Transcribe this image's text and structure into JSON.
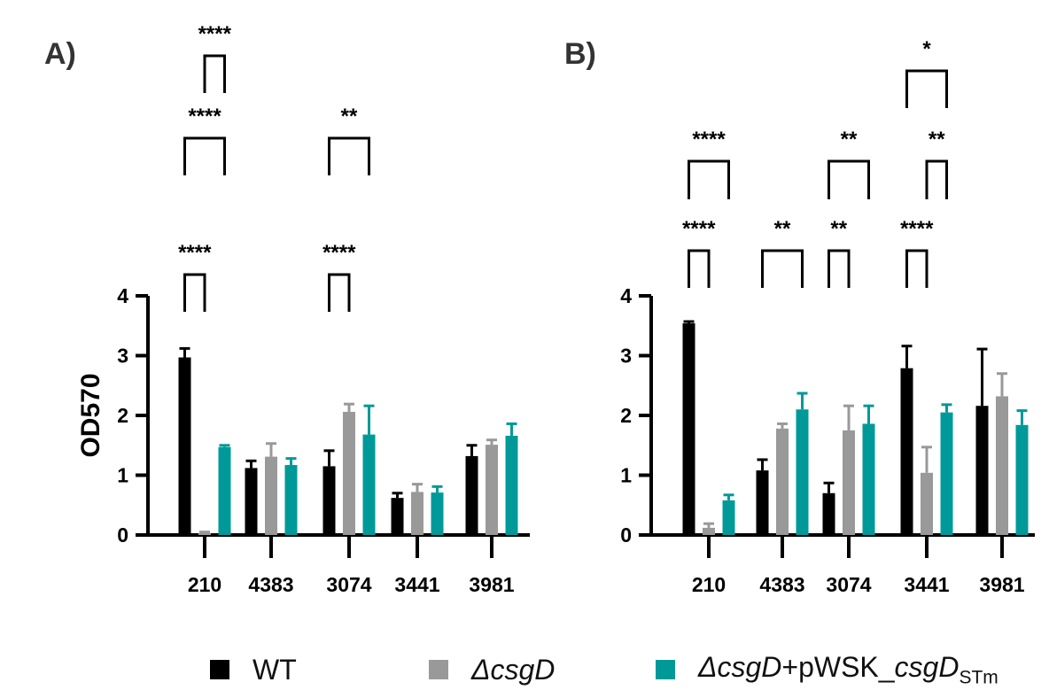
{
  "colors": {
    "wt": "#000000",
    "csgD": "#999999",
    "complement": "#009999",
    "axis": "#000000"
  },
  "legend": {
    "wt": {
      "label": "WT"
    },
    "csgD": {
      "label": "ΔcsgD"
    },
    "complement": {
      "prefix": "ΔcsgD",
      "mid": "+pWSK_",
      "gene": "csgD",
      "sub": "STm"
    }
  },
  "chart_data": [
    {
      "panel": "A)",
      "type": "bar",
      "ylabel": "OD570",
      "ylim": [
        0,
        4
      ],
      "yticks": [
        0,
        1,
        2,
        3,
        4
      ],
      "categories": [
        "210",
        "4383",
        "3074",
        "3441",
        "3981"
      ],
      "series": [
        {
          "name": "WT",
          "values": [
            2.97,
            1.12,
            1.15,
            0.62,
            1.32
          ],
          "errors": [
            0.15,
            0.12,
            0.26,
            0.08,
            0.18
          ]
        },
        {
          "name": "ΔcsgD",
          "values": [
            0.03,
            1.31,
            2.06,
            0.72,
            1.51
          ],
          "errors": [
            0.02,
            0.22,
            0.13,
            0.13,
            0.08
          ]
        },
        {
          "name": "ΔcsgD+pWSK_csgD STm",
          "values": [
            1.47,
            1.17,
            1.68,
            0.71,
            1.66
          ],
          "errors": [
            0.03,
            0.11,
            0.48,
            0.1,
            0.2
          ]
        }
      ],
      "significance": [
        {
          "category": "210",
          "from": 0,
          "to": 1,
          "level": 0,
          "label": "****"
        },
        {
          "category": "210",
          "from": 0,
          "to": 2,
          "level": 1,
          "label": "****"
        },
        {
          "category": "210",
          "from": 1,
          "to": 2,
          "level": 2,
          "label": "****"
        },
        {
          "category": "3074",
          "from": 0,
          "to": 1,
          "level": 0,
          "label": "****"
        },
        {
          "category": "3074",
          "from": 0,
          "to": 2,
          "level": 1,
          "label": "**"
        }
      ]
    },
    {
      "panel": "B)",
      "type": "bar",
      "ylabel": "",
      "ylim": [
        0,
        4
      ],
      "yticks": [
        0,
        1,
        2,
        3,
        4
      ],
      "categories": [
        "210",
        "4383",
        "3074",
        "3441",
        "3981"
      ],
      "series": [
        {
          "name": "WT",
          "values": [
            3.54,
            1.08,
            0.7,
            2.79,
            2.16
          ],
          "errors": [
            0.03,
            0.18,
            0.17,
            0.37,
            0.95
          ]
        },
        {
          "name": "ΔcsgD",
          "values": [
            0.12,
            1.78,
            1.75,
            1.04,
            2.32
          ],
          "errors": [
            0.07,
            0.08,
            0.41,
            0.43,
            0.38
          ]
        },
        {
          "name": "ΔcsgD+pWSK_csgD STm",
          "values": [
            0.58,
            2.1,
            1.86,
            2.05,
            1.84
          ],
          "errors": [
            0.09,
            0.27,
            0.3,
            0.13,
            0.24
          ]
        }
      ],
      "significance": [
        {
          "category": "210",
          "from": 0,
          "to": 1,
          "level": 0,
          "label": "****"
        },
        {
          "category": "210",
          "from": 0,
          "to": 2,
          "level": 1,
          "label": "****"
        },
        {
          "category": "4383",
          "from": 0,
          "to": 2,
          "level": 0,
          "label": "**"
        },
        {
          "category": "3074",
          "from": 0,
          "to": 1,
          "level": 0,
          "label": "**"
        },
        {
          "category": "3074",
          "from": 0,
          "to": 2,
          "level": 1,
          "label": "**"
        },
        {
          "category": "3441",
          "from": 0,
          "to": 1,
          "level": 0,
          "label": "****"
        },
        {
          "category": "3441",
          "from": 1,
          "to": 2,
          "level": 1,
          "label": "**"
        },
        {
          "category": "3441",
          "from": 0,
          "to": 2,
          "level": 2,
          "label": "*"
        }
      ]
    }
  ]
}
